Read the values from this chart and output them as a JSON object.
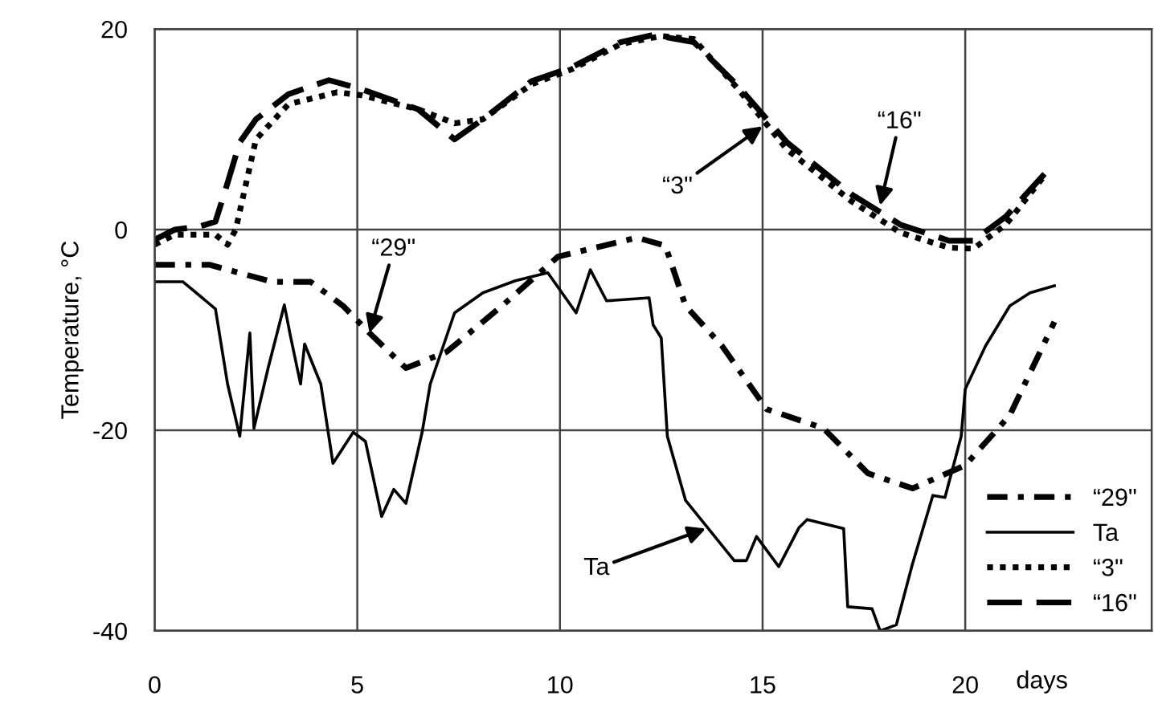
{
  "chart_data": {
    "type": "line",
    "xlabel": "days",
    "ylabel": "Temperature, °C",
    "xlim": [
      0,
      24.6
    ],
    "ylim": [
      -40,
      20
    ],
    "xticks": [
      0,
      5,
      10,
      15,
      20
    ],
    "yticks": [
      -40,
      -20,
      0,
      20
    ],
    "grid": true,
    "legend": "bottom right",
    "series": [
      {
        "name": "“29\"",
        "color": "#000000",
        "line_style": "dashdot",
        "x": [
          0,
          1.35,
          2.9,
          3.85,
          4.65,
          5.3,
          6.2,
          7.2,
          8.6,
          9.95,
          11.9,
          12.6,
          13.1,
          14.0,
          15.1,
          16.5,
          17.6,
          18.7,
          20,
          21.1,
          22.2
        ],
        "values": [
          -3.5,
          -3.5,
          -5.2,
          -5.2,
          -7.6,
          -10.3,
          -13.8,
          -12.2,
          -7.5,
          -2.7,
          -0.8,
          -1.6,
          -7.6,
          -11.6,
          -17.9,
          -19.8,
          -24.3,
          -25.8,
          -23.5,
          -18.5,
          -9.2
        ]
      },
      {
        "name": "Ta",
        "color": "#000000",
        "line_style": "solid",
        "x": [
          0,
          0.7,
          1.5,
          1.8,
          2.1,
          2.35,
          2.45,
          2.8,
          3.2,
          3.35,
          3.6,
          3.7,
          4.1,
          4.4,
          4.9,
          5.2,
          5.6,
          5.9,
          6.2,
          6.6,
          6.8,
          7.4,
          8.1,
          8.9,
          9.7,
          10.4,
          10.75,
          11.15,
          12.2,
          12.3,
          12.5,
          12.65,
          13.1,
          14.3,
          14.6,
          14.85,
          15.4,
          15.9,
          16.1,
          17.0,
          17.1,
          17.7,
          17.9,
          18.3,
          18.7,
          19.2,
          19.5,
          19.9,
          20,
          20.5,
          21.1,
          21.6,
          22.2
        ],
        "values": [
          -5.2,
          -5.2,
          -7.9,
          -15.4,
          -20.6,
          -10.3,
          -19.8,
          -13.8,
          -7.5,
          -10.6,
          -15.4,
          -11.4,
          -15.4,
          -23.3,
          -20.2,
          -21.1,
          -28.6,
          -25.9,
          -27.3,
          -20.2,
          -15.4,
          -8.3,
          -6.3,
          -5.1,
          -4.3,
          -8.3,
          -4,
          -7.1,
          -6.8,
          -9.5,
          -10.8,
          -20.6,
          -27,
          -33,
          -33,
          -30.6,
          -33.6,
          -29.7,
          -28.9,
          -29.8,
          -37.6,
          -37.8,
          -40,
          -39.4,
          -33.3,
          -26.5,
          -26.7,
          -20.6,
          -15.9,
          -11.6,
          -7.6,
          -6.3,
          -5.6
        ]
      },
      {
        "name": "“3\"",
        "color": "#000000",
        "line_style": "dotted",
        "x": [
          0,
          0.5,
          1.5,
          1.8,
          2.0,
          2.5,
          3.3,
          4.5,
          5.1,
          6.5,
          7.4,
          8.1,
          9.3,
          10.3,
          11.5,
          12.5,
          13.3,
          14.4,
          15.6,
          17.2,
          18.4,
          19.6,
          20.2,
          21,
          21.9
        ],
        "values": [
          -1.5,
          -0.5,
          -0.5,
          -1.5,
          0,
          9,
          12.5,
          13.7,
          13.4,
          12,
          10.6,
          11,
          14.5,
          16,
          18.5,
          19.3,
          19,
          14,
          8,
          2.8,
          -0.3,
          -1.8,
          -1.9,
          0.5,
          5.1
        ]
      },
      {
        "name": "“16\"",
        "color": "#000000",
        "line_style": "dashed",
        "x": [
          0,
          0.5,
          1.1,
          1.5,
          1.75,
          2.1,
          2.5,
          3.3,
          4.3,
          5.1,
          6.5,
          7.4,
          8.1,
          9.3,
          10.3,
          11.5,
          12.3,
          13.3,
          14.4,
          15.6,
          17.2,
          18.4,
          19.6,
          20.2,
          21,
          22.1
        ],
        "values": [
          -1,
          0,
          0.3,
          0.8,
          4,
          8.7,
          11,
          13.5,
          14.9,
          14,
          12,
          9.0,
          11,
          14.8,
          16.2,
          18.7,
          19.4,
          18.7,
          14.3,
          8.7,
          3.5,
          0.5,
          -1.1,
          -1.1,
          1.3,
          6.2
        ]
      }
    ],
    "annotations": [
      {
        "text": "“3\"",
        "x": 15.0,
        "y": 10.3
      },
      {
        "text": "“16\"",
        "x": 17.9,
        "y": 2.4
      },
      {
        "text": "“29\"",
        "x": 5.3,
        "y": -10.3
      },
      {
        "text": "Ta",
        "x": 13.6,
        "y": -29.8
      }
    ]
  }
}
